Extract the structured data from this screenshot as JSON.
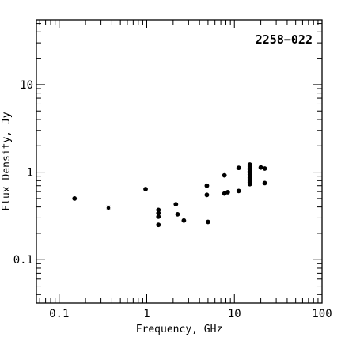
{
  "chart_data": {
    "type": "scatter",
    "title": "",
    "annotation": "2258−022",
    "xlabel": "Frequency, GHz",
    "ylabel": "Flux Density, Jy",
    "xscale": "log",
    "yscale": "log",
    "xlim": [
      0.055,
      100
    ],
    "ylim": [
      0.032,
      55
    ],
    "xticks": [
      {
        "value": 0.1,
        "label": "0.1"
      },
      {
        "value": 1,
        "label": "1"
      },
      {
        "value": 10,
        "label": "10"
      },
      {
        "value": 100,
        "label": "100"
      }
    ],
    "yticks": [
      {
        "value": 0.1,
        "label": "0.1"
      },
      {
        "value": 1,
        "label": "1"
      },
      {
        "value": 10,
        "label": "10"
      }
    ],
    "grid": false,
    "series": [
      {
        "marker": "filled-circle",
        "points": [
          {
            "x": 0.15,
            "y": 0.5
          },
          {
            "x": 0.365,
            "y": 0.39,
            "yerr": [
              0.37,
              0.41
            ]
          },
          {
            "x": 0.97,
            "y": 0.64
          },
          {
            "x": 1.36,
            "y": 0.37
          },
          {
            "x": 1.36,
            "y": 0.34
          },
          {
            "x": 1.36,
            "y": 0.31
          },
          {
            "x": 1.36,
            "y": 0.25
          },
          {
            "x": 2.15,
            "y": 0.43
          },
          {
            "x": 2.25,
            "y": 0.33
          },
          {
            "x": 2.65,
            "y": 0.28
          },
          {
            "x": 4.85,
            "y": 0.7
          },
          {
            "x": 4.85,
            "y": 0.55
          },
          {
            "x": 5.0,
            "y": 0.27
          },
          {
            "x": 7.7,
            "y": 0.92
          },
          {
            "x": 7.7,
            "y": 0.57
          },
          {
            "x": 8.4,
            "y": 0.59
          },
          {
            "x": 11.2,
            "y": 1.12
          },
          {
            "x": 11.2,
            "y": 0.61
          },
          {
            "x": 15.0,
            "y": 1.22
          },
          {
            "x": 15.0,
            "y": 1.17
          },
          {
            "x": 15.0,
            "y": 1.12
          },
          {
            "x": 15.0,
            "y": 1.07
          },
          {
            "x": 15.0,
            "y": 1.02
          },
          {
            "x": 15.0,
            "y": 0.98
          },
          {
            "x": 15.0,
            "y": 0.94
          },
          {
            "x": 15.0,
            "y": 0.9
          },
          {
            "x": 15.0,
            "y": 0.86
          },
          {
            "x": 15.0,
            "y": 0.82
          },
          {
            "x": 15.0,
            "y": 0.79
          },
          {
            "x": 15.0,
            "y": 0.76
          },
          {
            "x": 15.0,
            "y": 0.73
          },
          {
            "x": 20.0,
            "y": 1.13
          },
          {
            "x": 22.2,
            "y": 1.1
          },
          {
            "x": 22.2,
            "y": 0.75
          }
        ]
      }
    ]
  }
}
